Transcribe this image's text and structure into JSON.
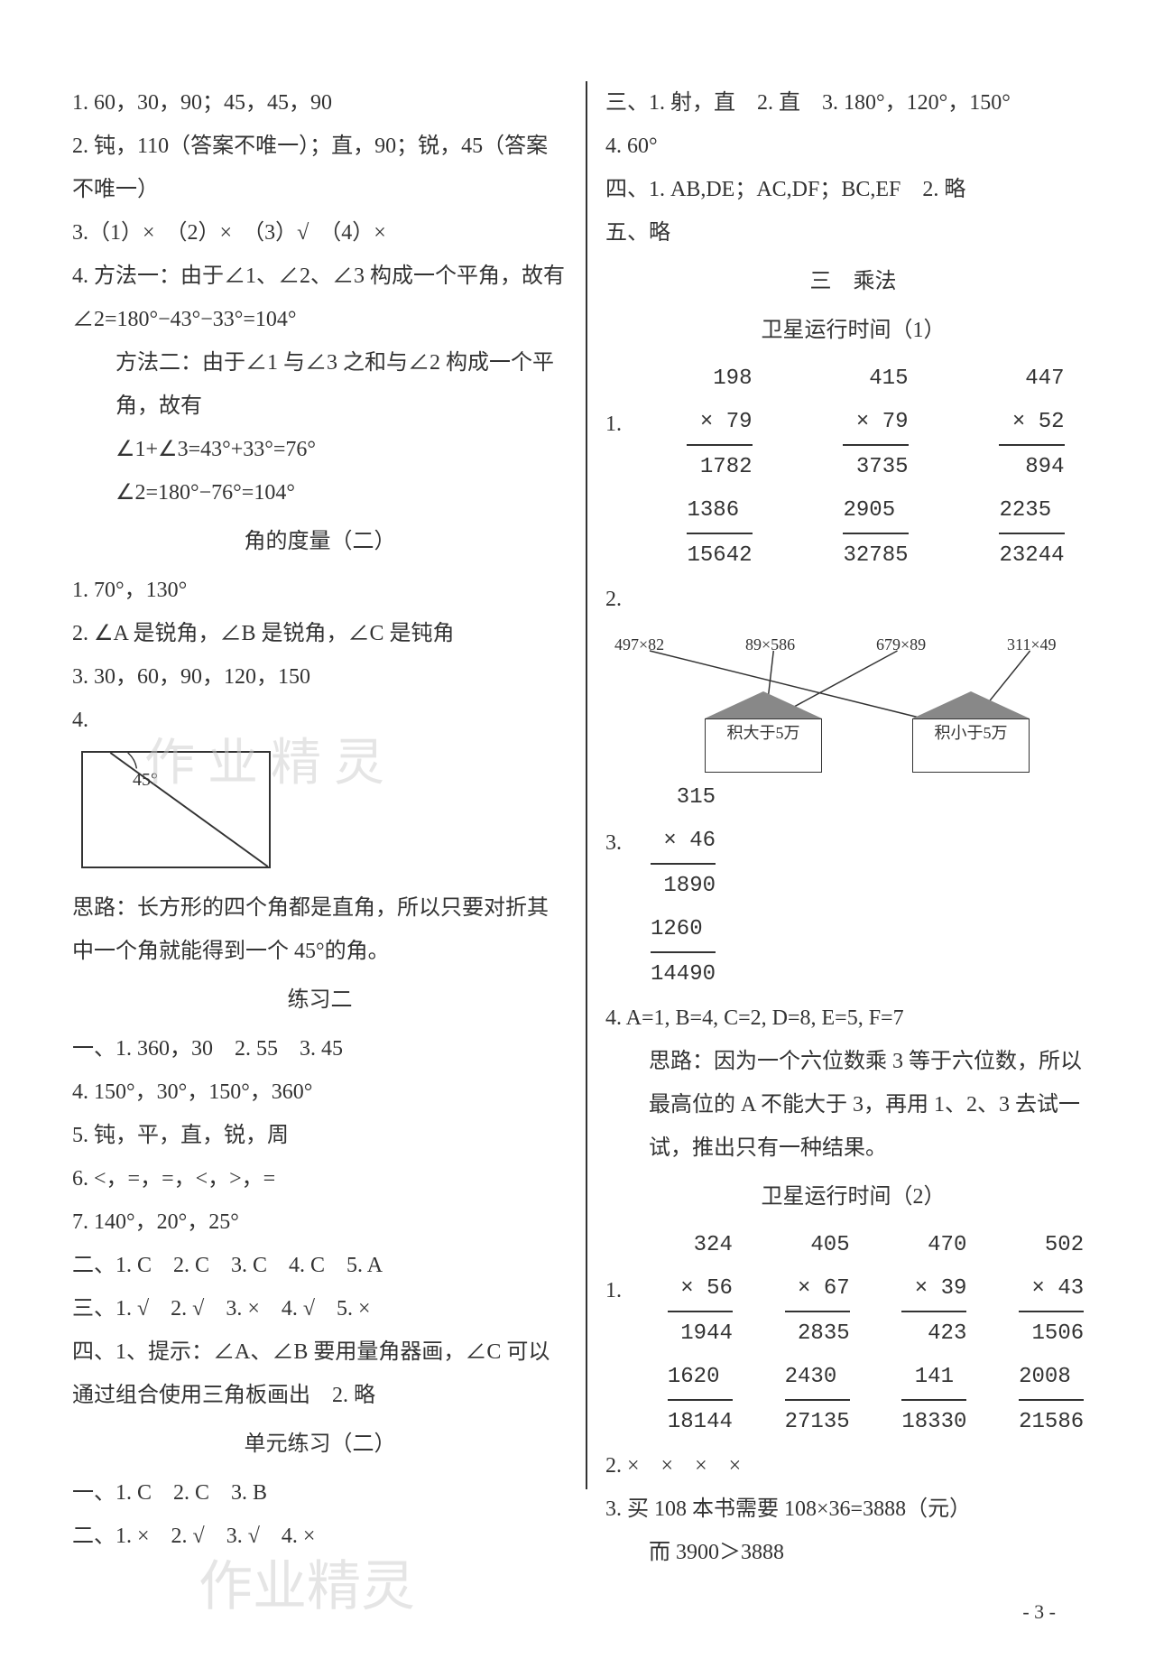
{
  "left": {
    "l1": "1. 60，30，90；45，45，90",
    "l2": "2. 钝，110（答案不唯一）；直，90；锐，45（答案不唯一）",
    "l3": "3.（1）×　（2）×　（3）√　（4）×",
    "l4a": "4. 方法一：由于∠1、∠2、∠3 构成一个平角，故有 ∠2=180°−43°−33°=104°",
    "l4b": "方法二：由于∠1 与∠3 之和与∠2 构成一个平角，故有",
    "l4c": "∠1+∠3=43°+33°=76°",
    "l4d": "∠2=180°−76°=104°",
    "sec2": "角的度量（二）",
    "m1": "1. 70°，130°",
    "m2": "2. ∠A 是锐角，∠B 是锐角，∠C 是钝角",
    "m3": "3. 30，60，90，120，150",
    "m4": "4.",
    "fig45": "45°",
    "think": "思路：长方形的四个角都是直角，所以只要对折其中一个角就能得到一个 45°的角。",
    "sec3": "练习二",
    "p1": "一、1. 360，30　2. 55　3. 45",
    "p4": "4. 150°，30°，150°，360°",
    "p5": "5. 钝，平，直，锐，周",
    "p6": "6. <，=，=，<，>，=",
    "p7": "7. 140°，20°，25°",
    "p2r": "二、1. C　2. C　3. C　4. C　5. A",
    "p3r": "三、1. √　2. √　3. ×　4. √　5. ×",
    "p4r": "四、1、提示：∠A、∠B 要用量角器画，∠C 可以通过组合使用三角板画出　2. 略",
    "sec4": "单元练习（二）",
    "u1": "一、1. C　2. C　3. B",
    "u2": "二、1. ×　2. √　3. √　4. ×"
  },
  "right": {
    "r3": "三、1. 射，直　2. 直　3. 180°，120°，150°",
    "r3b": "4. 60°",
    "r4": "四、1. AB,DE；AC,DF；BC,EF　2. 略",
    "r5": "五、略",
    "secA": "三　乘法",
    "secA1": "卫星运行时间（1）",
    "q1label": "1.",
    "mult1": {
      "cols": [
        {
          "a": "198",
          "b": "× 79",
          "p1": "1782",
          "p2": "1386",
          "res": "15642"
        },
        {
          "a": "415",
          "b": "× 79",
          "p1": "3735",
          "p2": "2905",
          "res": "32785"
        },
        {
          "a": "447",
          "b": "× 52",
          "p1": "894",
          "p2": "2235",
          "res": "23244"
        }
      ]
    },
    "q2": "2.",
    "diagram": {
      "exprs": [
        "497×82",
        "89×586",
        "679×89",
        "311×49"
      ],
      "box1": "积大于5万",
      "box2": "积小于5万"
    },
    "q3label": "3.",
    "mult3": {
      "a": "315",
      "b": "× 46",
      "p1": "1890",
      "p2": "1260",
      "res": "14490"
    },
    "q4": "4. A=1, B=4, C=2, D=8, E=5, F=7",
    "q4think": "思路：因为一个六位数乘 3 等于六位数，所以最高位的 A 不能大于 3，再用 1、2、3 去试一试，推出只有一种结果。",
    "secA2": "卫星运行时间（2）",
    "b1label": "1.",
    "mult2": {
      "cols": [
        {
          "a": "324",
          "b": "× 56",
          "p1": "1944",
          "p2": "1620",
          "res": "18144"
        },
        {
          "a": "405",
          "b": "× 67",
          "p1": "2835",
          "p2": "2430",
          "res": "27135"
        },
        {
          "a": "470",
          "b": "× 39",
          "p1": "423",
          "p2": "141",
          "res": "18330"
        },
        {
          "a": "502",
          "b": "× 43",
          "p1": "1506",
          "p2": "2008",
          "res": "21586"
        }
      ]
    },
    "b2": "2. ×　×　×　×",
    "b3": "3. 买 108 本书需要 108×36=3888（元）",
    "b3b": "而 3900＞3888"
  },
  "watermarks": {
    "wm1": "作 业 精 灵",
    "wm2": "作业",
    "wm3": "精灵",
    "wm4": "作业精灵"
  },
  "pageNum": "- 3 -",
  "colors": {
    "text": "#333333",
    "bg": "#ffffff",
    "border": "#333333",
    "watermark": "#cccccc"
  },
  "fontsize_pt": 18
}
